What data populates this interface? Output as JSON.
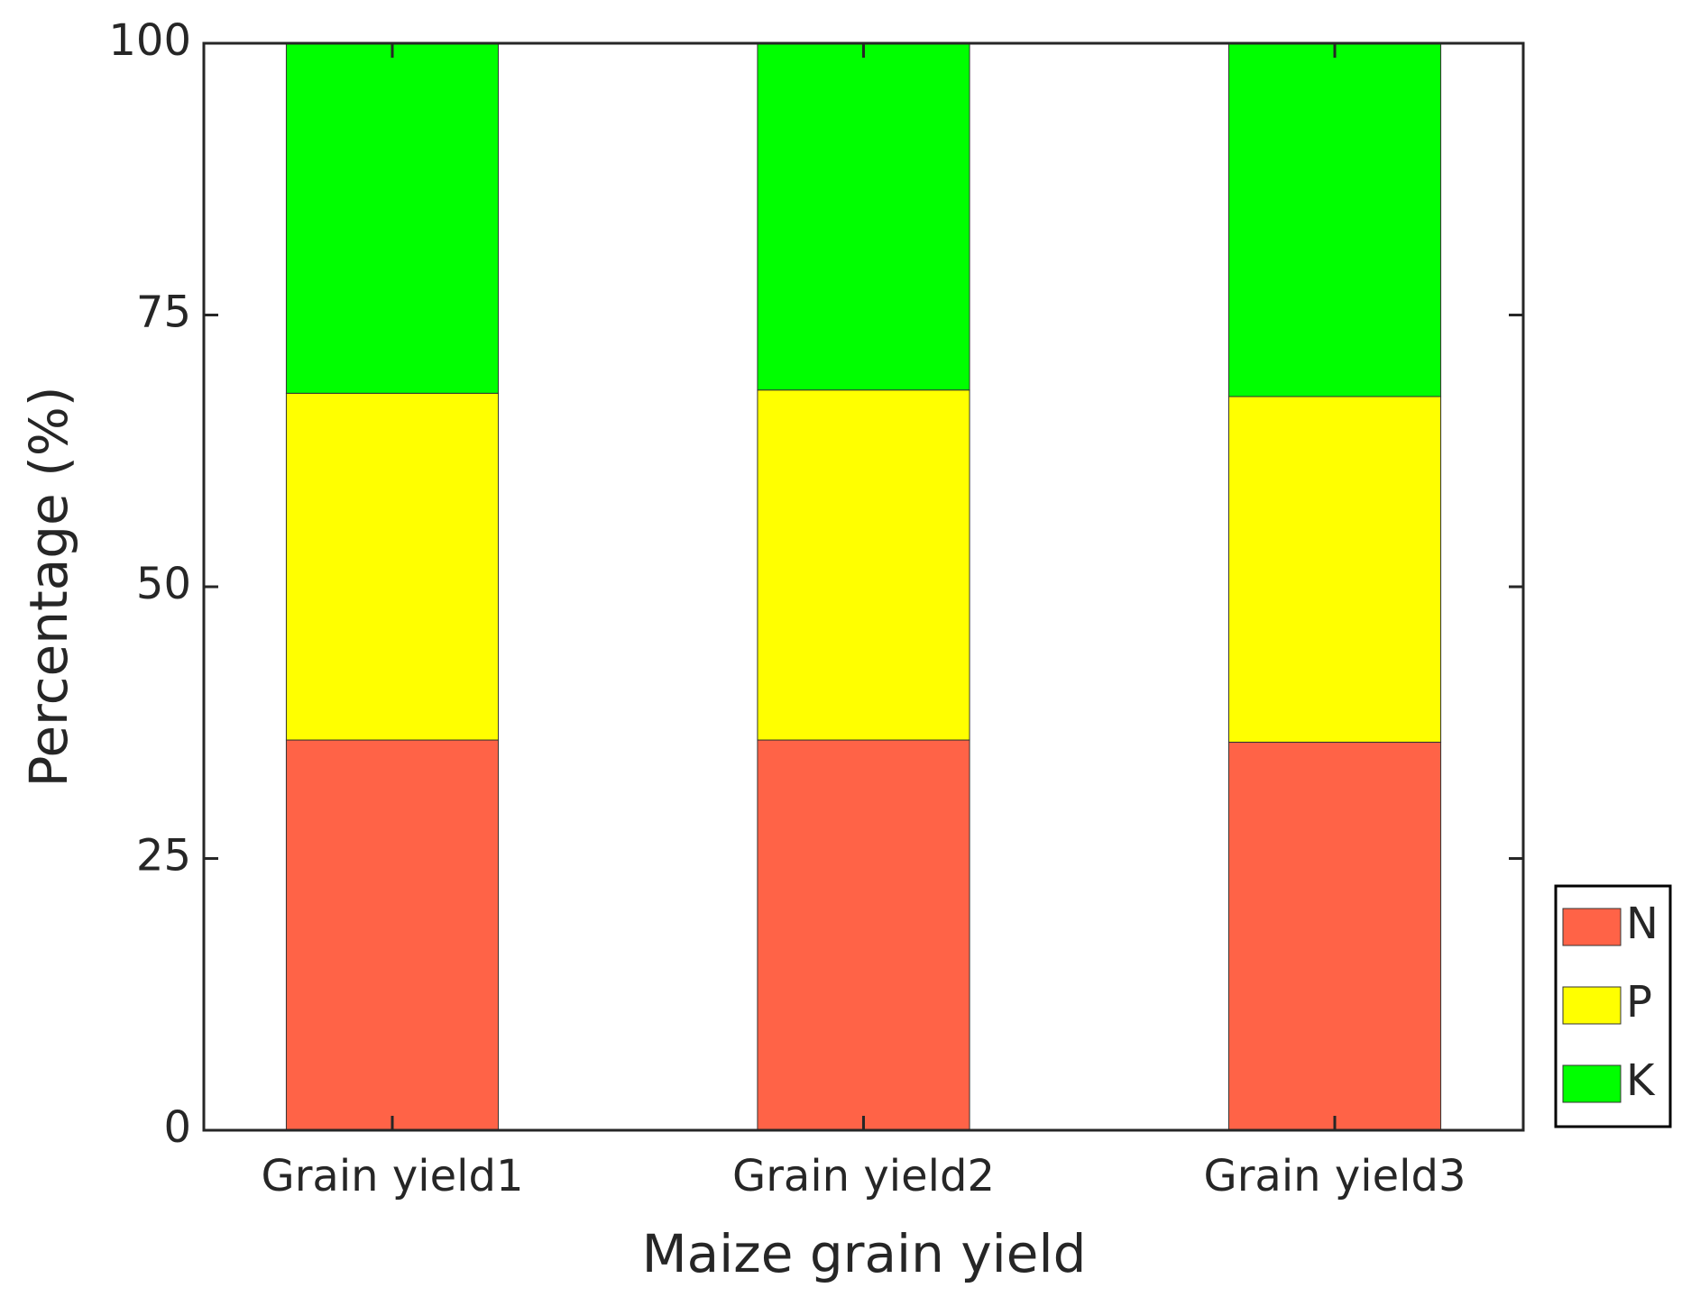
{
  "chart_data": {
    "type": "stacked-bar",
    "x_label": "Maize grain yield",
    "y_label": "Percentage (%)",
    "categories": [
      "Grain yield1",
      "Grain yield2",
      "Grain yield3"
    ],
    "series": [
      {
        "name": "N",
        "color": "#ff6347",
        "values": [
          35.9,
          35.9,
          35.7
        ]
      },
      {
        "name": "P",
        "color": "#ffff00",
        "values": [
          31.9,
          32.2,
          31.8
        ]
      },
      {
        "name": "K",
        "color": "#00ff00",
        "values": [
          32.2,
          31.9,
          32.5
        ]
      }
    ],
    "ylim": [
      0,
      100
    ],
    "yticks": [
      0,
      25,
      50,
      75,
      100
    ],
    "grid": false,
    "legend": "outside-lower-right"
  }
}
